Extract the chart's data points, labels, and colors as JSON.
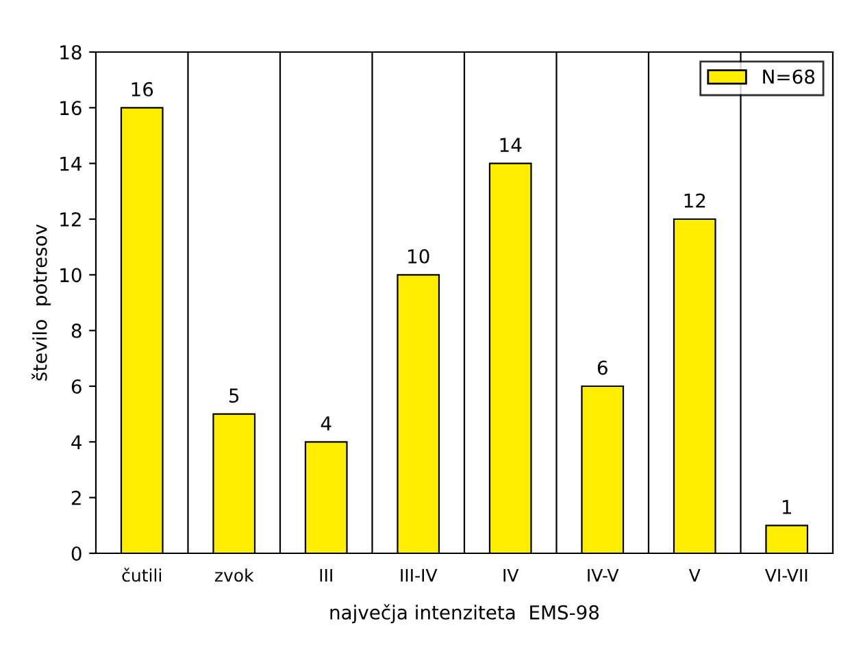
{
  "chart_data": {
    "type": "bar",
    "xlabel": "največja intenziteta  EMS-98",
    "ylabel": "število  potresov",
    "categories": [
      "čutili",
      "zvok",
      "III",
      "III-IV",
      "IV",
      "IV-V",
      "V",
      "VI-VII"
    ],
    "series": [
      {
        "name": "N=68",
        "color": "#ffee00",
        "values": [
          16,
          5,
          4,
          10,
          14,
          6,
          12,
          1
        ]
      }
    ],
    "ylim": [
      0,
      18
    ],
    "yticks": [
      0,
      2,
      4,
      6,
      8,
      10,
      12,
      14,
      16,
      18
    ],
    "grid": "x",
    "legend": "top right",
    "data_labels": true
  }
}
